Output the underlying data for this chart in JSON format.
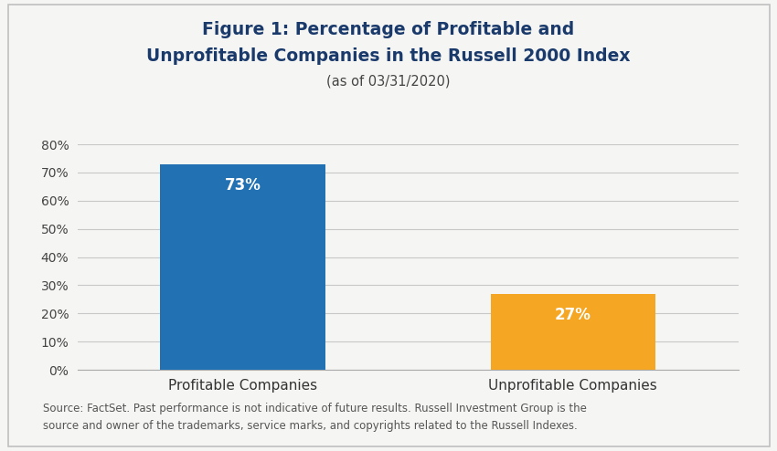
{
  "title_line1": "Figure 1: Percentage of Profitable and",
  "title_line2": "Unprofitable Companies in the Russell 2000 Index",
  "subtitle": "(as of 03/31/2020)",
  "categories": [
    "Profitable Companies",
    "Unprofitable Companies"
  ],
  "values": [
    73,
    27
  ],
  "bar_colors": [
    "#2271b3",
    "#f5a623"
  ],
  "bar_labels": [
    "73%",
    "27%"
  ],
  "ylim": [
    0,
    80
  ],
  "yticks": [
    0,
    10,
    20,
    30,
    40,
    50,
    60,
    70,
    80
  ],
  "ytick_labels": [
    "0%",
    "10%",
    "20%",
    "30%",
    "40%",
    "50%",
    "60%",
    "70%",
    "80%"
  ],
  "title_color": "#1a3a6b",
  "subtitle_color": "#444444",
  "bar_label_color": "#ffffff",
  "footer_text_line1": "Source: FactSet. Past performance is not indicative of future results. Russell Investment Group is the",
  "footer_text_line2": "source and owner of the trademarks, service marks, and copyrights related to the Russell Indexes.",
  "footer_color": "#555555",
  "background_color": "#f5f5f3",
  "grid_color": "#c8c8c8",
  "title_fontsize": 13.5,
  "subtitle_fontsize": 10.5,
  "bar_label_fontsize": 12,
  "tick_fontsize": 10,
  "footer_fontsize": 8.5,
  "xticklabel_fontsize": 11
}
